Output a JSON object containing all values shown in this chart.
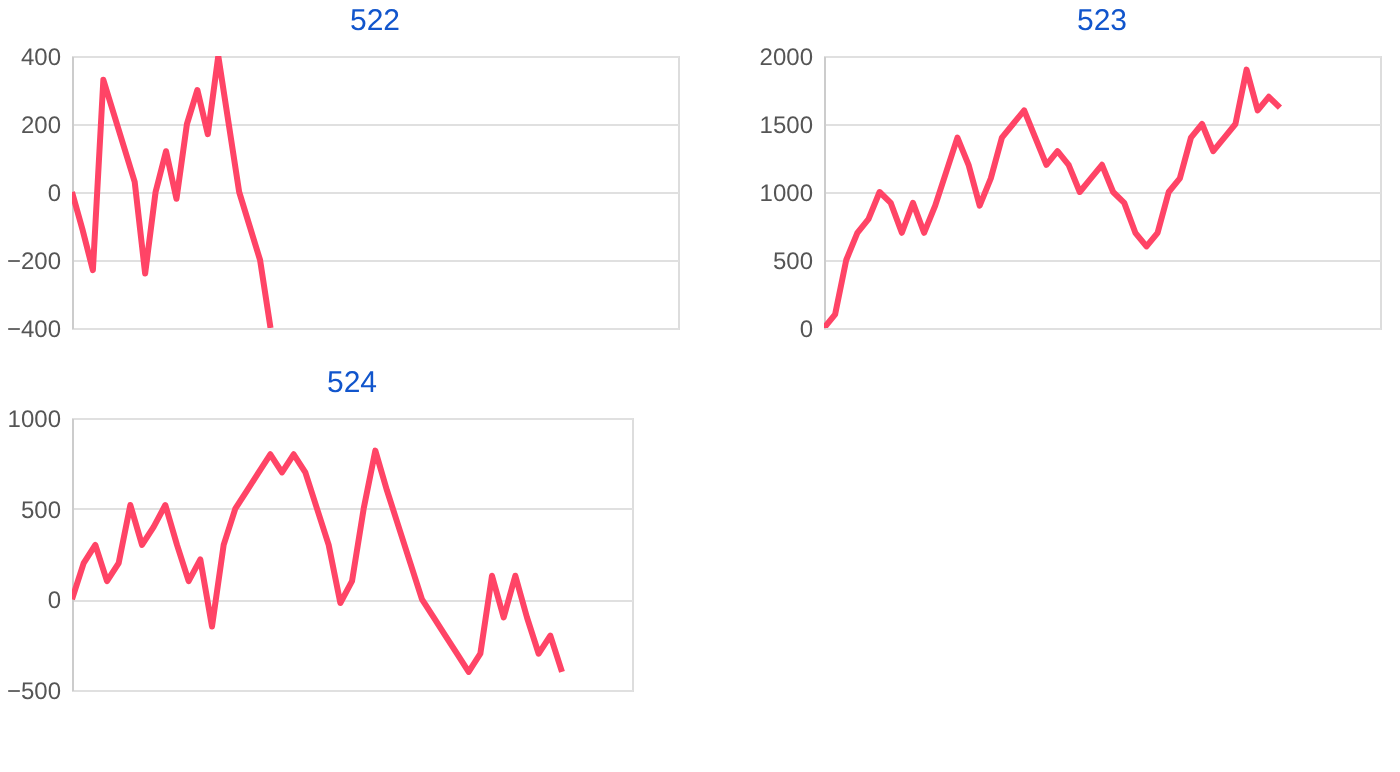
{
  "chart_data": [
    {
      "type": "line",
      "title": "522",
      "categories": [
        null,
        null,
        null,
        null,
        null,
        null,
        null,
        null,
        null,
        null,
        null,
        null,
        null,
        null,
        null,
        null,
        null,
        null,
        null,
        null,
        null,
        null,
        null,
        null,
        null,
        null,
        null,
        null,
        null,
        null,
        null,
        null,
        null,
        null,
        null,
        null,
        null,
        null,
        null,
        null,
        null,
        null,
        null,
        null,
        null,
        null,
        null,
        null,
        null,
        null,
        null,
        null,
        null,
        null,
        null,
        null,
        null,
        null,
        null
      ],
      "series": [
        {
          "color": "#ff4466",
          "values": [
            0,
            -110,
            -230,
            330,
            230,
            130,
            30,
            -240,
            0,
            120,
            -20,
            200,
            300,
            170,
            400,
            200,
            0,
            -100,
            -200,
            -400,
            null,
            null,
            null,
            null,
            null,
            null,
            null,
            null,
            null,
            null,
            null,
            null,
            null,
            null,
            null,
            null,
            null,
            null,
            null,
            null,
            null,
            null,
            null,
            null,
            null,
            null,
            null,
            null,
            null,
            null,
            null,
            null,
            null,
            null,
            null,
            null,
            null,
            null,
            null
          ]
        }
      ],
      "ylim": [
        -400,
        400
      ],
      "yticks": [
        -400,
        -200,
        0,
        200,
        400
      ],
      "grid": "y",
      "tick_labels": "y"
    },
    {
      "type": "line",
      "title": "523",
      "categories": [
        null,
        null,
        null,
        null,
        null,
        null,
        null,
        null,
        null,
        null,
        null,
        null,
        null,
        null,
        null,
        null,
        null,
        null,
        null,
        null,
        null,
        null,
        null,
        null,
        null,
        null,
        null,
        null,
        null,
        null,
        null,
        null,
        null,
        null,
        null,
        null,
        null,
        null,
        null,
        null,
        null,
        null,
        null,
        null,
        null,
        null,
        null,
        null,
        null,
        null,
        null
      ],
      "series": [
        {
          "color": "#ff4466",
          "values": [
            0,
            100,
            500,
            700,
            800,
            1000,
            920,
            700,
            920,
            700,
            900,
            1150,
            1400,
            1200,
            900,
            1100,
            1400,
            1500,
            1600,
            1400,
            1200,
            1300,
            1200,
            1000,
            1100,
            1200,
            1000,
            920,
            700,
            600,
            700,
            1000,
            1100,
            1400,
            1500,
            1300,
            1400,
            1500,
            1900,
            1600,
            1700,
            1620,
            null,
            null,
            null,
            null,
            null,
            null,
            null,
            null,
            null
          ]
        }
      ],
      "ylim": [
        0,
        2000
      ],
      "yticks": [
        0,
        500,
        1000,
        1500,
        2000
      ],
      "grid": "y",
      "tick_labels": "y"
    },
    {
      "type": "line",
      "title": "524",
      "categories": [
        null,
        null,
        null,
        null,
        null,
        null,
        null,
        null,
        null,
        null,
        null,
        null,
        null,
        null,
        null,
        null,
        null,
        null,
        null,
        null,
        null,
        null,
        null,
        null,
        null,
        null,
        null,
        null,
        null,
        null,
        null,
        null,
        null,
        null,
        null,
        null,
        null,
        null,
        null,
        null,
        null,
        null,
        null,
        null,
        null,
        null,
        null,
        null,
        null
      ],
      "series": [
        {
          "color": "#ff4466",
          "values": [
            0,
            200,
            300,
            100,
            200,
            520,
            300,
            400,
            520,
            300,
            100,
            220,
            -150,
            300,
            500,
            600,
            700,
            800,
            700,
            800,
            700,
            500,
            300,
            -20,
            100,
            500,
            820,
            600,
            400,
            200,
            0,
            -100,
            -200,
            -300,
            -400,
            -300,
            130,
            -100,
            130,
            -100,
            -300,
            -200,
            -400,
            null,
            null,
            null,
            null,
            null,
            null
          ]
        }
      ],
      "ylim": [
        -500,
        1000
      ],
      "yticks": [
        -500,
        0,
        500,
        1000
      ],
      "grid": "y",
      "tick_labels": "y"
    }
  ]
}
